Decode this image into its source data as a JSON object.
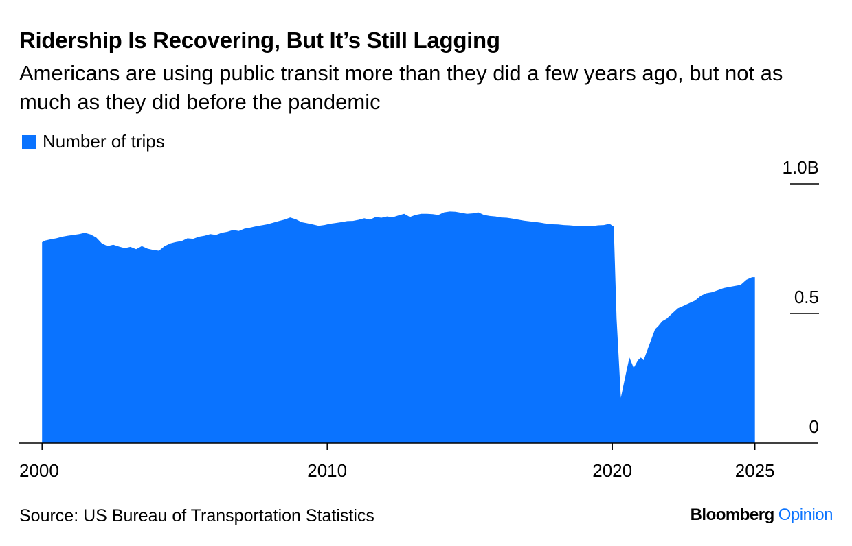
{
  "header": {
    "title": "Ridership Is Recovering, But It’s Still Lagging",
    "subtitle": "Americans are using public transit more than they did a few years ago, but not as much as they did before the pandemic"
  },
  "footer": {
    "source": "Source: US Bureau of Transportation Statistics",
    "brand_name": "Bloomberg",
    "brand_suffix": "Opinion"
  },
  "colors": {
    "series": "#0a73ff",
    "brand_accent": "#0a73ff",
    "axis": "#000000"
  },
  "chart_data": {
    "type": "area",
    "title": "Ridership Is Recovering, But It’s Still Lagging",
    "subtitle": "Americans are using public transit more than they did a few years ago, but not as much as they did before the pandemic",
    "xlabel": "",
    "ylabel": "",
    "x_range": [
      1999.2,
      2027.2
    ],
    "ylim": [
      0,
      1.0
    ],
    "y_unit": "billions of trips",
    "y_axis_position": "right",
    "legend_position": "top-left",
    "grid": false,
    "x_ticks": [
      {
        "value": 2000,
        "label": "2000"
      },
      {
        "value": 2010,
        "label": "2010"
      },
      {
        "value": 2020,
        "label": "2020"
      },
      {
        "value": 2025,
        "label": "2025"
      }
    ],
    "y_ticks": [
      {
        "value": 0,
        "label": "0"
      },
      {
        "value": 0.5,
        "label": "0.5"
      },
      {
        "value": 1.0,
        "label": "1.0B"
      }
    ],
    "series": [
      {
        "name": "Number of trips",
        "x": [
          2000.0,
          2000.1,
          2000.3,
          2000.5,
          2000.7,
          2000.9,
          2001.1,
          2001.3,
          2001.5,
          2001.7,
          2001.9,
          2002.1,
          2002.3,
          2002.5,
          2002.7,
          2002.9,
          2003.1,
          2003.3,
          2003.5,
          2003.7,
          2003.9,
          2004.1,
          2004.3,
          2004.5,
          2004.7,
          2004.9,
          2005.1,
          2005.3,
          2005.5,
          2005.7,
          2005.9,
          2006.1,
          2006.3,
          2006.5,
          2006.7,
          2006.9,
          2007.1,
          2007.3,
          2007.5,
          2007.7,
          2007.9,
          2008.1,
          2008.3,
          2008.5,
          2008.7,
          2008.9,
          2009.1,
          2009.3,
          2009.5,
          2009.7,
          2009.9,
          2010.1,
          2010.3,
          2010.5,
          2010.7,
          2010.9,
          2011.1,
          2011.3,
          2011.5,
          2011.7,
          2011.9,
          2012.1,
          2012.3,
          2012.5,
          2012.7,
          2012.9,
          2013.1,
          2013.3,
          2013.5,
          2013.7,
          2013.9,
          2014.1,
          2014.3,
          2014.5,
          2014.7,
          2014.9,
          2015.1,
          2015.3,
          2015.5,
          2015.7,
          2015.9,
          2016.1,
          2016.3,
          2016.5,
          2016.7,
          2016.9,
          2017.1,
          2017.3,
          2017.5,
          2017.7,
          2017.9,
          2018.1,
          2018.3,
          2018.5,
          2018.7,
          2018.9,
          2019.1,
          2019.3,
          2019.5,
          2019.7,
          2019.9,
          2020.05,
          2020.15,
          2020.3,
          2020.5,
          2020.6,
          2020.75,
          2020.9,
          2021.0,
          2021.1,
          2021.3,
          2021.5,
          2021.6,
          2021.75,
          2021.9,
          2022.1,
          2022.3,
          2022.5,
          2022.7,
          2022.9,
          2023.1,
          2023.3,
          2023.5,
          2023.7,
          2023.9,
          2024.1,
          2024.3,
          2024.5,
          2024.7,
          2024.9,
          2025.0
        ],
        "values": [
          0.775,
          0.781,
          0.786,
          0.79,
          0.796,
          0.8,
          0.803,
          0.806,
          0.811,
          0.805,
          0.793,
          0.77,
          0.76,
          0.765,
          0.758,
          0.752,
          0.757,
          0.748,
          0.76,
          0.75,
          0.745,
          0.742,
          0.76,
          0.77,
          0.776,
          0.78,
          0.79,
          0.788,
          0.796,
          0.8,
          0.806,
          0.803,
          0.811,
          0.815,
          0.822,
          0.818,
          0.827,
          0.831,
          0.836,
          0.84,
          0.844,
          0.85,
          0.856,
          0.862,
          0.87,
          0.863,
          0.852,
          0.848,
          0.843,
          0.838,
          0.841,
          0.846,
          0.849,
          0.852,
          0.856,
          0.857,
          0.861,
          0.867,
          0.862,
          0.872,
          0.869,
          0.874,
          0.871,
          0.878,
          0.884,
          0.872,
          0.88,
          0.884,
          0.884,
          0.883,
          0.88,
          0.89,
          0.893,
          0.892,
          0.888,
          0.884,
          0.886,
          0.89,
          0.88,
          0.876,
          0.874,
          0.87,
          0.869,
          0.866,
          0.862,
          0.858,
          0.855,
          0.853,
          0.85,
          0.846,
          0.844,
          0.843,
          0.841,
          0.84,
          0.838,
          0.836,
          0.838,
          0.837,
          0.84,
          0.841,
          0.846,
          0.835,
          0.48,
          0.175,
          0.28,
          0.33,
          0.29,
          0.32,
          0.33,
          0.32,
          0.38,
          0.44,
          0.45,
          0.47,
          0.48,
          0.5,
          0.52,
          0.53,
          0.54,
          0.55,
          0.568,
          0.578,
          0.582,
          0.59,
          0.598,
          0.602,
          0.606,
          0.61,
          0.63,
          0.64,
          0.64
        ]
      }
    ]
  }
}
